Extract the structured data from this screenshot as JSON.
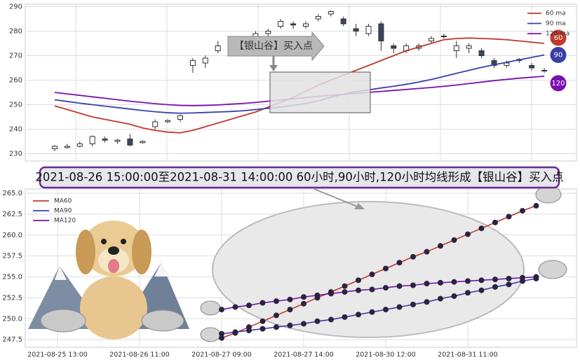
{
  "chart_data": [
    {
      "type": "candlestick",
      "annotation": "【银山谷】买入点",
      "ylim": [
        227,
        291
      ],
      "yticks": [
        230,
        240,
        250,
        260,
        270,
        280,
        290
      ],
      "grid": true,
      "legend": "upper right",
      "open": [
        232,
        232.5,
        233,
        234,
        236,
        235,
        236,
        234.5,
        241,
        243,
        244,
        266,
        267,
        272,
        271,
        273,
        277,
        279,
        282,
        283,
        282,
        285,
        287,
        285,
        281,
        279,
        283,
        274,
        272,
        273,
        276,
        278,
        272,
        273,
        272,
        268,
        266,
        268,
        266,
        264
      ],
      "close": [
        233,
        233,
        234,
        237,
        235.5,
        235.5,
        233.5,
        235,
        243,
        243.5,
        245.5,
        268,
        269,
        274,
        275,
        271,
        279,
        280,
        284,
        282.5,
        283,
        286,
        288,
        283,
        280,
        282,
        276,
        273,
        274,
        274,
        277,
        278,
        274,
        274,
        270,
        266,
        267,
        268.5,
        265,
        264
      ],
      "high": [
        233.5,
        234,
        235,
        237.5,
        237,
        236,
        238,
        235.5,
        244,
        244,
        246,
        269,
        270,
        276,
        276,
        274,
        280,
        281,
        285,
        284,
        284,
        287,
        288.5,
        286,
        283,
        283,
        284,
        275,
        275,
        275,
        278,
        279,
        276,
        275,
        273,
        269,
        268,
        269,
        267,
        265
      ],
      "low": [
        231,
        232,
        232.5,
        233,
        234.5,
        234,
        233,
        234,
        240,
        242.5,
        243,
        263,
        265,
        271,
        270,
        270,
        276,
        277,
        281,
        281,
        281,
        284,
        286,
        282,
        278,
        278,
        272,
        271,
        271,
        272,
        275,
        277,
        269,
        271,
        269,
        265,
        265,
        267,
        264,
        263
      ],
      "series": [
        {
          "name": "60 ma",
          "end_label": "60",
          "color": "#c0392b",
          "values": [
            249.5,
            248,
            246.5,
            245,
            244,
            243,
            242,
            240.5,
            239.5,
            238.8,
            238.5,
            239.5,
            241,
            242.5,
            244,
            245.5,
            247,
            249,
            251,
            253,
            255.5,
            258,
            260,
            262,
            264,
            266,
            268,
            270,
            272,
            273.5,
            275,
            276.5,
            277,
            277.2,
            277,
            276.8,
            276.5,
            276,
            275.5,
            275
          ]
        },
        {
          "name": "90 ma",
          "end_label": "90",
          "color": "#3a3fa8",
          "values": [
            252,
            251.3,
            250.6,
            250,
            249.4,
            248.8,
            248.2,
            247.6,
            247.1,
            246.7,
            246.5,
            246.6,
            246.8,
            247,
            247.2,
            247.5,
            248,
            248.5,
            249,
            249.7,
            250.5,
            251.5,
            253,
            254.3,
            255.3,
            256,
            256.8,
            257.5,
            258.3,
            259.2,
            260.3,
            261.5,
            262.8,
            264,
            265.2,
            266.3,
            267.3,
            268.3,
            269.3,
            270.3
          ]
        },
        {
          "name": "120 ma",
          "end_label": "120",
          "color": "#7a10b0",
          "values": [
            255,
            254.4,
            253.8,
            253.2,
            252.6,
            252,
            251.4,
            250.9,
            250.4,
            250,
            249.7,
            249.6,
            249.7,
            249.9,
            250.2,
            250.5,
            250.9,
            251.4,
            251.9,
            252.4,
            252.9,
            253.4,
            253.8,
            254.2,
            254.6,
            255,
            255.4,
            255.8,
            256.2,
            256.6,
            257,
            257.5,
            258,
            258.6,
            259.2,
            259.8,
            260.3,
            260.8,
            261.2,
            261.6
          ]
        }
      ]
    },
    {
      "type": "line",
      "title": "2021-08-26 15:00:00至2021-08-31 14:00:00 60小时,90小时,120小时均线形成【银山谷】买入点",
      "categories": [
        "2021-08-25 13:00",
        null,
        null,
        null,
        null,
        null,
        "2021-08-26 11:00",
        null,
        null,
        null,
        null,
        null,
        "2021-08-27 09:00",
        null,
        null,
        null,
        null,
        null,
        "2021-08-27 14:00",
        null,
        null,
        null,
        null,
        null,
        "2021-08-30 12:00",
        null,
        null,
        null,
        null,
        null,
        "2021-08-31 11:00",
        null,
        null,
        null,
        null,
        null
      ],
      "ylim": [
        246.6,
        265.5
      ],
      "yticks": [
        {
          "value": 247.5,
          "label": "247.5"
        },
        {
          "value": 250,
          "label": "250.0"
        },
        {
          "value": 252.5,
          "label": "252.5"
        },
        {
          "value": 255,
          "label": "255.0"
        },
        {
          "value": 257.5,
          "label": "257.5"
        },
        {
          "value": 260,
          "label": "260.0"
        },
        {
          "value": 262.5,
          "label": "262.5"
        },
        {
          "value": 265,
          "label": "265.0"
        }
      ],
      "grid": true,
      "legend": "upper left",
      "series": [
        {
          "name": "MA60",
          "color": "#c0392b",
          "values": [
            null,
            null,
            null,
            null,
            null,
            null,
            null,
            null,
            null,
            null,
            null,
            null,
            247.7,
            248.3,
            249.0,
            249.7,
            250.4,
            251.1,
            251.8,
            252.5,
            253.2,
            253.9,
            254.6,
            255.3,
            256.0,
            256.7,
            257.4,
            258.0,
            258.7,
            259.4,
            260.1,
            260.8,
            261.5,
            262.2,
            262.9,
            263.5
          ]
        },
        {
          "name": "MA90",
          "color": "#3a3fa8",
          "values": [
            null,
            null,
            null,
            null,
            null,
            null,
            null,
            null,
            null,
            null,
            null,
            null,
            248.2,
            248.4,
            248.6,
            248.8,
            249.0,
            249.2,
            249.4,
            249.7,
            249.9,
            250.2,
            250.5,
            250.8,
            251.1,
            251.4,
            251.7,
            252.0,
            252.4,
            252.7,
            253.1,
            253.4,
            253.8,
            254.1,
            254.5,
            254.8
          ]
        },
        {
          "name": "MA120",
          "color": "#7a10b0",
          "values": [
            null,
            null,
            null,
            null,
            null,
            null,
            null,
            null,
            null,
            null,
            null,
            null,
            251.1,
            251.4,
            251.6,
            251.9,
            252.1,
            252.3,
            252.6,
            252.8,
            253.0,
            253.2,
            253.4,
            253.5,
            253.7,
            253.9,
            254.0,
            254.2,
            254.3,
            254.4,
            254.5,
            254.6,
            254.7,
            254.8,
            254.9,
            255.0
          ]
        }
      ]
    }
  ]
}
